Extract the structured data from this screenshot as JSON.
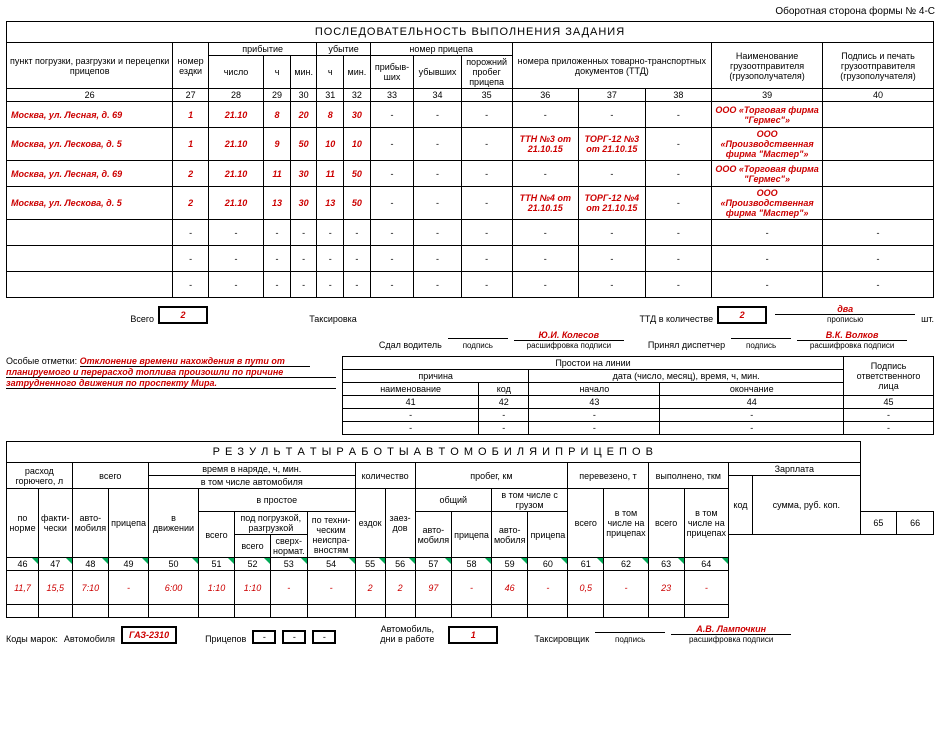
{
  "header_right": "Оборотная сторона формы № 4-С",
  "section1_title": "ПОСЛЕДОВАТЕЛЬНОСТЬ  ВЫПОЛНЕНИЯ  ЗАДАНИЯ",
  "cols1": {
    "c26": "пункт погрузки, разгрузки и перецепки прицепов",
    "c27": "номер ездки",
    "arrival": "прибытие",
    "departure": "убытие",
    "c28": "число",
    "c29": "ч",
    "c30": "мин.",
    "c31": "ч",
    "c32": "мин.",
    "trailer": "номер прицепа",
    "c33": "прибыв-ших",
    "c34": "убывших",
    "c35": "порожний пробег прицепа",
    "c36_38": "номера приложенных товарно-транспортных документов (ТТД)",
    "c39": "Наименование грузоотправителя (грузополучателя)",
    "c40": "Подпись и печать грузоотправителя (грузополучателя)"
  },
  "nums1": {
    "n26": "26",
    "n27": "27",
    "n28": "28",
    "n29": "29",
    "n30": "30",
    "n31": "31",
    "n32": "32",
    "n33": "33",
    "n34": "34",
    "n35": "35",
    "n36": "36",
    "n37": "37",
    "n38": "38",
    "n39": "39",
    "n40": "40"
  },
  "rows1": [
    {
      "addr": "Москва, ул. Лесная, д. 69",
      "ride": "1",
      "date": "21.10",
      "ah": "8",
      "am": "20",
      "dh": "8",
      "dm": "30",
      "t1": "-",
      "t2": "-",
      "t3": "-",
      "d1": "-",
      "d2": "-",
      "d3": "-",
      "name": "ООО «Торговая фирма \"Гермес\"»",
      "sign": ""
    },
    {
      "addr": "Москва, ул. Лескова, д. 5",
      "ride": "1",
      "date": "21.10",
      "ah": "9",
      "am": "50",
      "dh": "10",
      "dm": "10",
      "t1": "-",
      "t2": "-",
      "t3": "-",
      "d1": "ТТН №3 от 21.10.15",
      "d2": "ТОРГ-12 №3 от 21.10.15",
      "d3": "-",
      "name": "ООО «Производственная фирма \"Мастер\"»",
      "sign": ""
    },
    {
      "addr": "Москва, ул. Лесная, д. 69",
      "ride": "2",
      "date": "21.10",
      "ah": "11",
      "am": "30",
      "dh": "11",
      "dm": "50",
      "t1": "-",
      "t2": "-",
      "t3": "-",
      "d1": "-",
      "d2": "-",
      "d3": "-",
      "name": "ООО «Торговая фирма \"Гермес\"»",
      "sign": ""
    },
    {
      "addr": "Москва, ул. Лескова, д. 5",
      "ride": "2",
      "date": "21.10",
      "ah": "13",
      "am": "30",
      "dh": "13",
      "dm": "50",
      "t1": "-",
      "t2": "-",
      "t3": "-",
      "d1": "ТТН №4 от 21.10.15",
      "d2": "ТОРГ-12 №4 от 21.10.15",
      "d3": "-",
      "name": "ООО «Производственная фирма \"Мастер\"»",
      "sign": ""
    },
    {
      "addr": "",
      "ride": "-",
      "date": "-",
      "ah": "-",
      "am": "-",
      "dh": "-",
      "dm": "-",
      "t1": "-",
      "t2": "-",
      "t3": "-",
      "d1": "-",
      "d2": "-",
      "d3": "-",
      "name": "-",
      "sign": "-"
    },
    {
      "addr": "",
      "ride": "-",
      "date": "-",
      "ah": "-",
      "am": "-",
      "dh": "-",
      "dm": "-",
      "t1": "-",
      "t2": "-",
      "t3": "-",
      "d1": "-",
      "d2": "-",
      "d3": "-",
      "name": "-",
      "sign": "-"
    },
    {
      "addr": "",
      "ride": "-",
      "date": "-",
      "ah": "-",
      "am": "-",
      "dh": "-",
      "dm": "-",
      "t1": "-",
      "t2": "-",
      "t3": "-",
      "d1": "-",
      "d2": "-",
      "d3": "-",
      "name": "-",
      "sign": "-"
    }
  ],
  "totals1": {
    "label_total": "Всего",
    "total_rides": "2",
    "label_ttd": "ТТД в количестве",
    "ttd_count": "2",
    "ttd_word": "два",
    "units": "шт.",
    "propis": "прописью"
  },
  "taks": "Таксировка",
  "sig": {
    "driver_lbl": "Сдал водитель",
    "driver": "Ю.И. Колесов",
    "disp_lbl": "Принял диспетчер",
    "disp": "В.К. Волков",
    "sub1": "подпись",
    "sub2": "расшифровка подписи"
  },
  "notes": {
    "label": "Особые отметки:",
    "text1": "Отклонение времени нахождения в пути от",
    "text2": "планируемого и перерасход топлива произошли по причине",
    "text3": "затрудненного движения по проспекту Мира."
  },
  "downtime": {
    "title": "Простои на линии",
    "reason": "причина",
    "date": "дата (число, месяц), время, ч, мин.",
    "name": "наименование",
    "code": "код",
    "start": "начало",
    "end": "окончание",
    "resp": "Подпись ответственного лица",
    "n41": "41",
    "n42": "42",
    "n43": "43",
    "n44": "44",
    "n45": "45"
  },
  "section2_title": "Р Е З У Л Ь Т А Т Ы   Р А Б О Т Ы   А В Т О М О Б И Л Я   И   П Р И Ц Е П О В",
  "cols2": {
    "fuel": "расход горючего, л",
    "total": "всего",
    "time": "время в наряде, ч, мин.",
    "time_auto": "в том числе автомобиля",
    "qty": "количество",
    "mileage": "пробег, км",
    "carried": "перевезено, т",
    "done": "выполнено, ткм",
    "salary": "Зарплата",
    "code": "код",
    "sum": "сумма, руб. коп.",
    "norm": "по норме",
    "fact": "факти-чески",
    "auto": "авто-мобиля",
    "trailer": "прицепа",
    "moving": "в движении",
    "idle": "в простое",
    "loading": "под погрузкой, разгрузкой",
    "tech": "по техни-ческим неиспра-вностям",
    "sverh": "сверх-нормат.",
    "rides": "ездок",
    "calls": "заез-дов",
    "common": "общий",
    "withload": "в том числе с грузом",
    "ontrailer": "в том числе на прицепах"
  },
  "nums2": {
    "n46": "46",
    "n47": "47",
    "n48": "48",
    "n49": "49",
    "n50": "50",
    "n51": "51",
    "n52": "52",
    "n53": "53",
    "n54": "54",
    "n55": "55",
    "n56": "56",
    "n57": "57",
    "n58": "58",
    "n59": "59",
    "n60": "60",
    "n61": "61",
    "n62": "62",
    "n63": "63",
    "n64": "64",
    "n65": "65",
    "n66": "66"
  },
  "row2": {
    "v46": "11,7",
    "v47": "15,5",
    "v48": "7:10",
    "v49": "-",
    "v50": "6:00",
    "v51": "1:10",
    "v52": "1:10",
    "v53": "-",
    "v54": "-",
    "v55": "2",
    "v56": "2",
    "v57": "97",
    "v58": "-",
    "v59": "46",
    "v60": "-",
    "v61": "0,5",
    "v62": "-",
    "v63": "23",
    "v64": "-"
  },
  "footer": {
    "codes": "Коды марок:",
    "auto_lbl": "Автомобиля",
    "auto_code": "ГАЗ-2310",
    "trailer_lbl": "Прицепов",
    "dash": "-",
    "days_lbl": "Автомобиль, дни в работе",
    "days": "1",
    "tax_lbl": "Таксировщик",
    "tax_name": "А.В. Лампочкин",
    "sub1": "подпись",
    "sub2": "расшифровка подписи"
  }
}
